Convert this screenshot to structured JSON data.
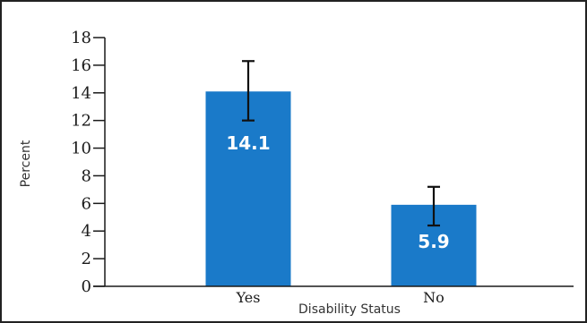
{
  "chart_data": {
    "type": "bar",
    "title": "",
    "xlabel": "Disability Status",
    "ylabel": "Percent",
    "categories": [
      "Yes",
      "No"
    ],
    "values": [
      14.1,
      5.9
    ],
    "value_labels": [
      "14.1",
      "5.9"
    ],
    "error_bars": [
      {
        "lower": 12.0,
        "upper": 16.3
      },
      {
        "lower": 4.4,
        "upper": 7.2
      }
    ],
    "ylim": [
      0,
      18
    ],
    "yticks": [
      0,
      2,
      4,
      6,
      8,
      10,
      12,
      14,
      16,
      18
    ],
    "ytick_labels": [
      "0",
      "2",
      "4",
      "6",
      "8",
      "10",
      "12",
      "14",
      "16",
      "18"
    ],
    "grid": false,
    "legend": "none",
    "colors": {
      "bar": "#1a7ac9",
      "frame": "#222222",
      "axis": "#1a1a1a",
      "error_bar": "#111111",
      "data_label": "#ffffff"
    }
  }
}
